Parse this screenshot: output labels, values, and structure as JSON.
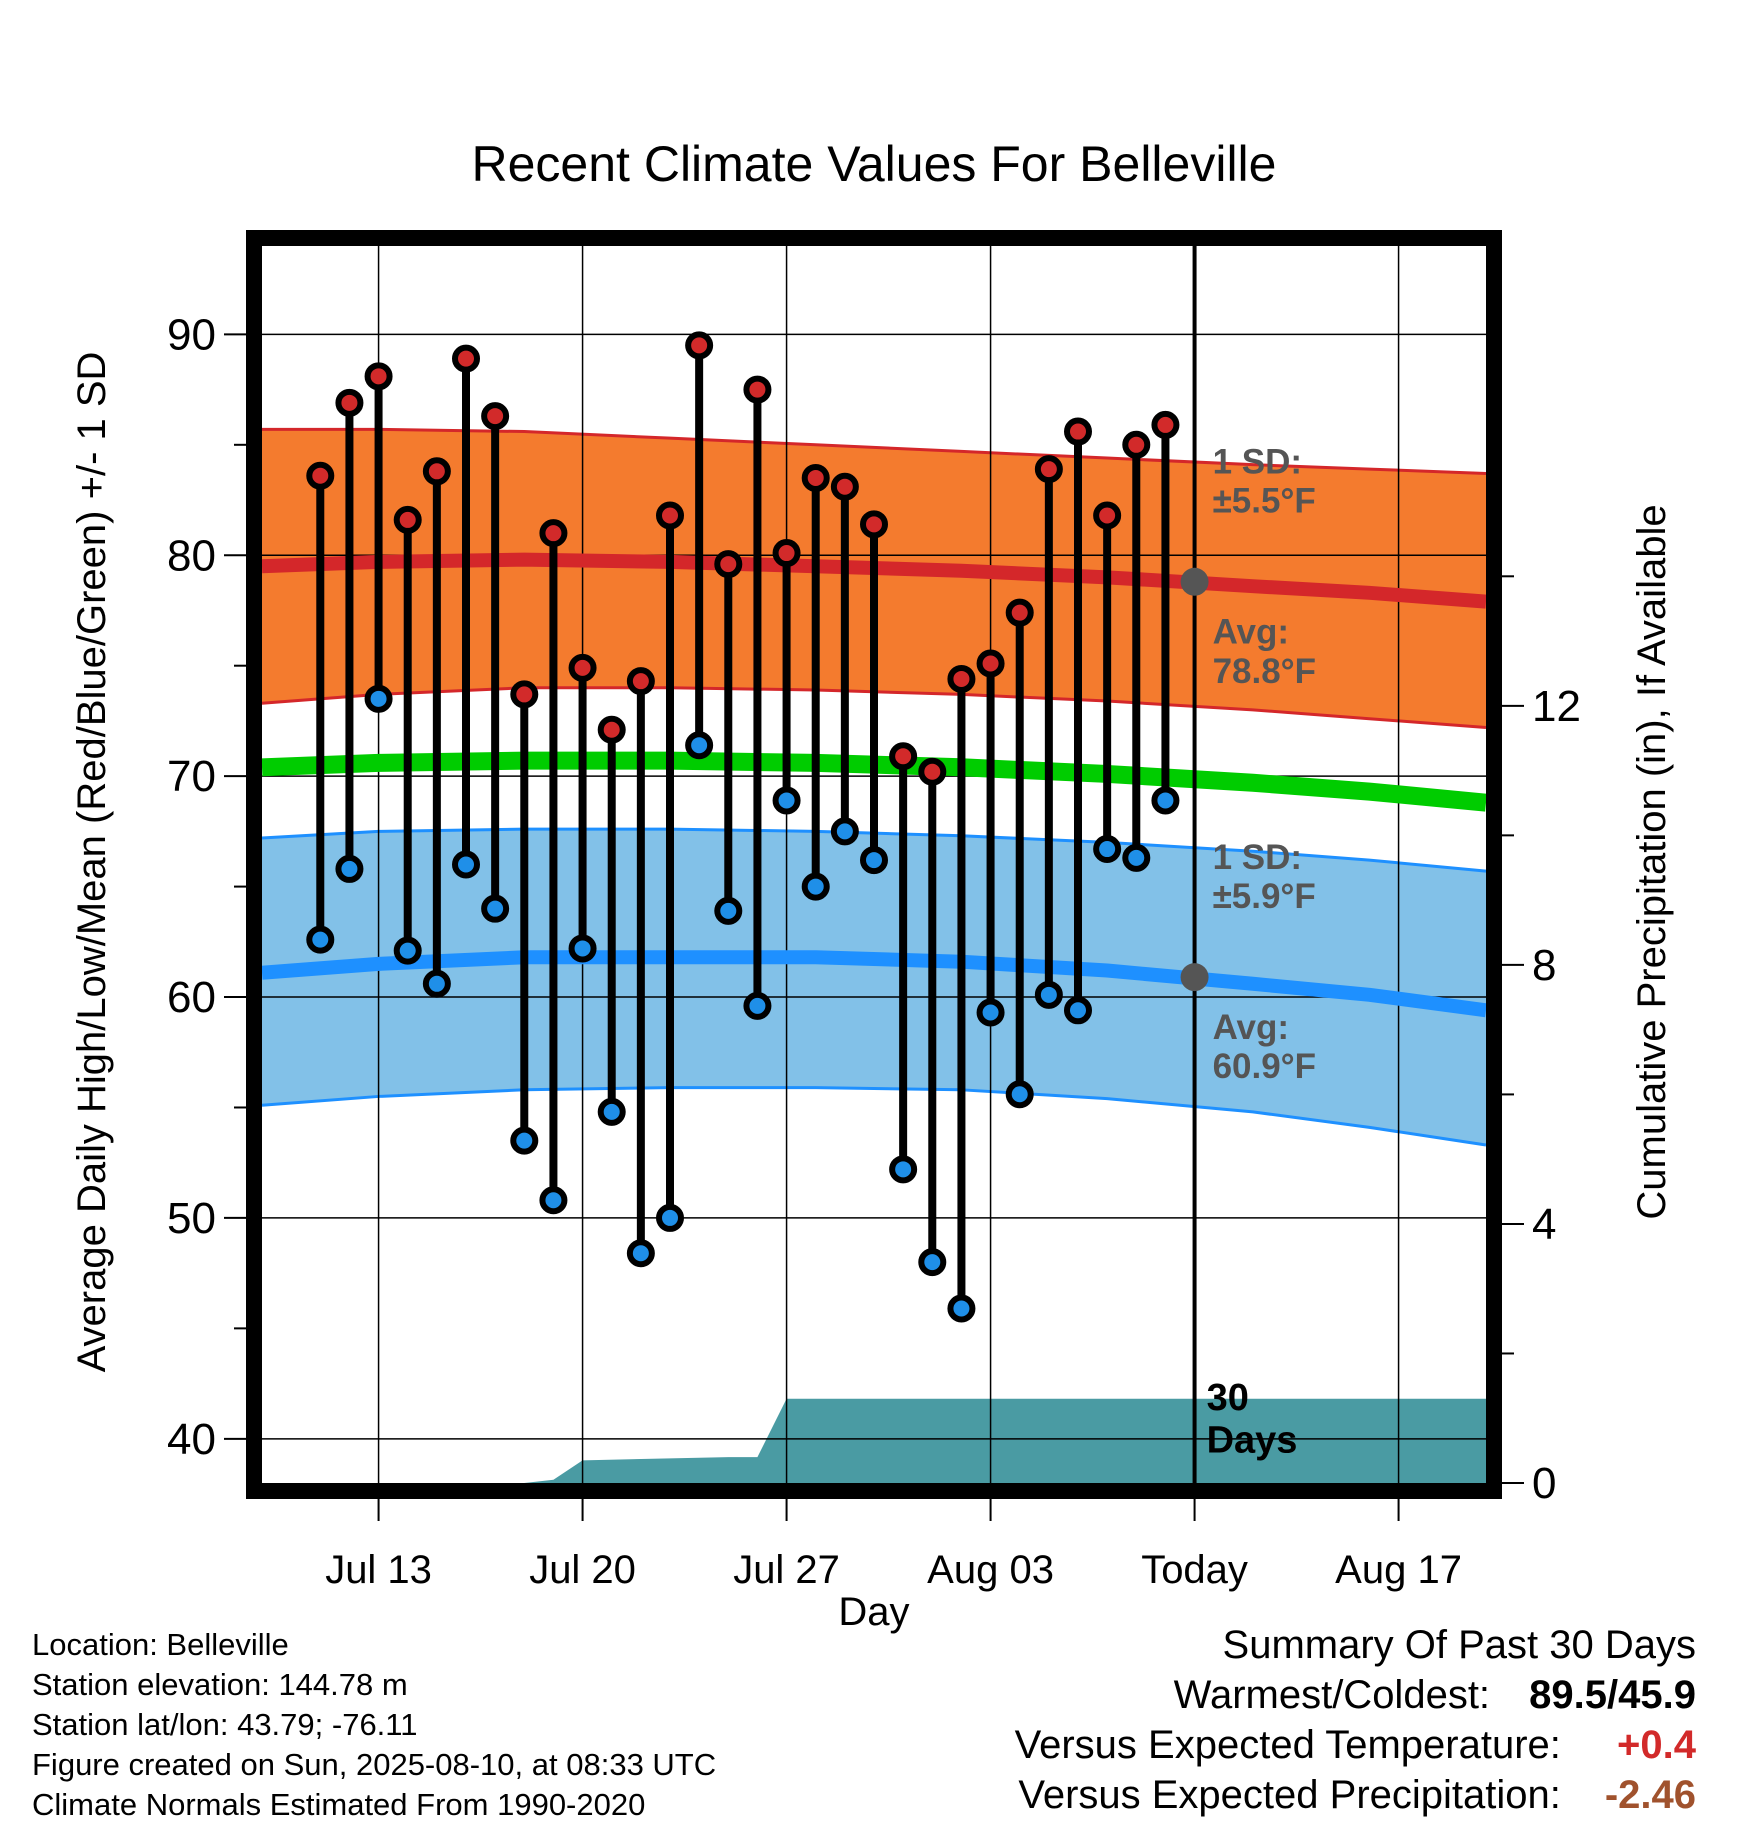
{
  "chart_data": {
    "type": "line",
    "title": "Recent Climate Values For Belleville",
    "xlabel": "Day",
    "ylabel": "Average Daily High/Low/Mean (Red/Blue/Green) +/- 1 SD",
    "y2label": "Cumulative Precipitation (in), If Available",
    "ylim": [
      38,
      94
    ],
    "y2lim": [
      0,
      19.1
    ],
    "yticks": [
      40,
      50,
      60,
      70,
      80,
      90
    ],
    "y2ticks": [
      0,
      4,
      8,
      12
    ],
    "x_range_days": [
      "2025-07-09",
      "2025-08-20"
    ],
    "x_ticks": [
      {
        "date": "2025-07-13",
        "label": "Jul 13"
      },
      {
        "date": "2025-07-20",
        "label": "Jul 20"
      },
      {
        "date": "2025-07-27",
        "label": "Jul 27"
      },
      {
        "date": "2025-08-03",
        "label": "Aug 03"
      },
      {
        "date": "2025-08-10",
        "label": "Today"
      },
      {
        "date": "2025-08-17",
        "label": "Aug 17"
      }
    ],
    "grid": true,
    "today": "2025-08-10",
    "observed": {
      "dates": [
        "2025-07-11",
        "2025-07-12",
        "2025-07-13",
        "2025-07-14",
        "2025-07-15",
        "2025-07-16",
        "2025-07-17",
        "2025-07-18",
        "2025-07-19",
        "2025-07-20",
        "2025-07-21",
        "2025-07-22",
        "2025-07-23",
        "2025-07-24",
        "2025-07-25",
        "2025-07-26",
        "2025-07-27",
        "2025-07-28",
        "2025-07-29",
        "2025-07-30",
        "2025-07-31",
        "2025-08-01",
        "2025-08-02",
        "2025-08-03",
        "2025-08-04",
        "2025-08-05",
        "2025-08-06",
        "2025-08-07",
        "2025-08-08",
        "2025-08-09"
      ],
      "highs": [
        83.6,
        86.9,
        88.1,
        81.6,
        83.8,
        88.9,
        86.3,
        73.7,
        81.0,
        74.9,
        72.1,
        74.3,
        81.8,
        89.5,
        79.6,
        87.5,
        80.1,
        83.5,
        83.1,
        81.4,
        70.9,
        70.2,
        74.4,
        75.1,
        77.4,
        83.9,
        85.6,
        81.8,
        85.0,
        85.9
      ],
      "lows": [
        62.6,
        65.8,
        73.5,
        62.1,
        60.6,
        66.0,
        64.0,
        53.5,
        50.8,
        62.2,
        54.8,
        48.4,
        50.0,
        71.4,
        63.9,
        59.6,
        68.9,
        65.0,
        67.5,
        66.2,
        52.2,
        48.0,
        45.9,
        59.3,
        55.6,
        60.1,
        59.4,
        66.7,
        66.3,
        68.9
      ]
    },
    "normals": {
      "dates": [
        "2025-07-09",
        "2025-07-13",
        "2025-07-18",
        "2025-07-23",
        "2025-07-28",
        "2025-08-02",
        "2025-08-07",
        "2025-08-12",
        "2025-08-16",
        "2025-08-20"
      ],
      "high_mean": [
        79.5,
        79.7,
        79.8,
        79.7,
        79.5,
        79.3,
        79.0,
        78.6,
        78.3,
        77.9
      ],
      "high_upper": [
        85.7,
        85.7,
        85.6,
        85.3,
        85.0,
        84.7,
        84.4,
        84.1,
        83.9,
        83.7
      ],
      "high_lower": [
        73.3,
        73.7,
        74.0,
        74.0,
        73.9,
        73.7,
        73.4,
        73.0,
        72.6,
        72.2
      ],
      "mean_mean": [
        70.4,
        70.6,
        70.7,
        70.7,
        70.6,
        70.4,
        70.1,
        69.7,
        69.3,
        68.8
      ],
      "low_mean": [
        61.1,
        61.5,
        61.8,
        61.8,
        61.8,
        61.6,
        61.2,
        60.6,
        60.1,
        59.4
      ],
      "low_upper": [
        67.2,
        67.5,
        67.6,
        67.6,
        67.5,
        67.3,
        67.0,
        66.6,
        66.2,
        65.7
      ],
      "low_lower": [
        55.1,
        55.5,
        55.8,
        55.9,
        55.9,
        55.8,
        55.4,
        54.8,
        54.1,
        53.3
      ]
    },
    "precipitation": {
      "dates": [
        "2025-07-09",
        "2025-07-18",
        "2025-07-19",
        "2025-07-20",
        "2025-07-25",
        "2025-07-26",
        "2025-07-27",
        "2025-08-10",
        "2025-08-20"
      ],
      "cumulative": [
        0,
        0,
        0.05,
        0.35,
        0.4,
        0.4,
        1.3,
        1.3,
        1.3
      ]
    },
    "annotations": {
      "high_sd": [
        "1 SD:",
        "±5.5°F"
      ],
      "high_avg": [
        "Avg:",
        "78.8°F"
      ],
      "low_sd": [
        "1 SD:",
        "±5.9°F"
      ],
      "low_avg": [
        "Avg:",
        "60.9°F"
      ],
      "period": [
        "30",
        "Days"
      ],
      "high_avg_value": 78.8,
      "low_avg_value": 60.9
    },
    "colors": {
      "high_band": "#f47b2e",
      "high_line": "#d4272a",
      "low_band": "#82c1e8",
      "low_line": "#1e90ff",
      "mean_line": "#00cc00",
      "high_marker": "#d22a2a",
      "low_marker": "#1f8fe8",
      "precip": "#4a9ba3",
      "avg_marker": "#555555"
    }
  },
  "info": {
    "location": "Location: Belleville",
    "elevation": "Station elevation: 144.78 m",
    "latlon": "Station lat/lon: 43.79; -76.11",
    "created": "Figure created on Sun, 2025-08-10, at 08:33 UTC",
    "normals": "Climate Normals Estimated From 1990-2020"
  },
  "summary": {
    "heading": "Summary Of Past 30 Days",
    "warmest_coldest_label": "Warmest/Coldest:",
    "warmest_coldest_value": "89.5/45.9",
    "temp_label": "Versus Expected Temperature:",
    "temp_value": "+0.4",
    "temp_color": "#d22a2a",
    "precip_label": "Versus Expected Precipitation:",
    "precip_value": "-2.46",
    "precip_color": "#a0522d"
  }
}
